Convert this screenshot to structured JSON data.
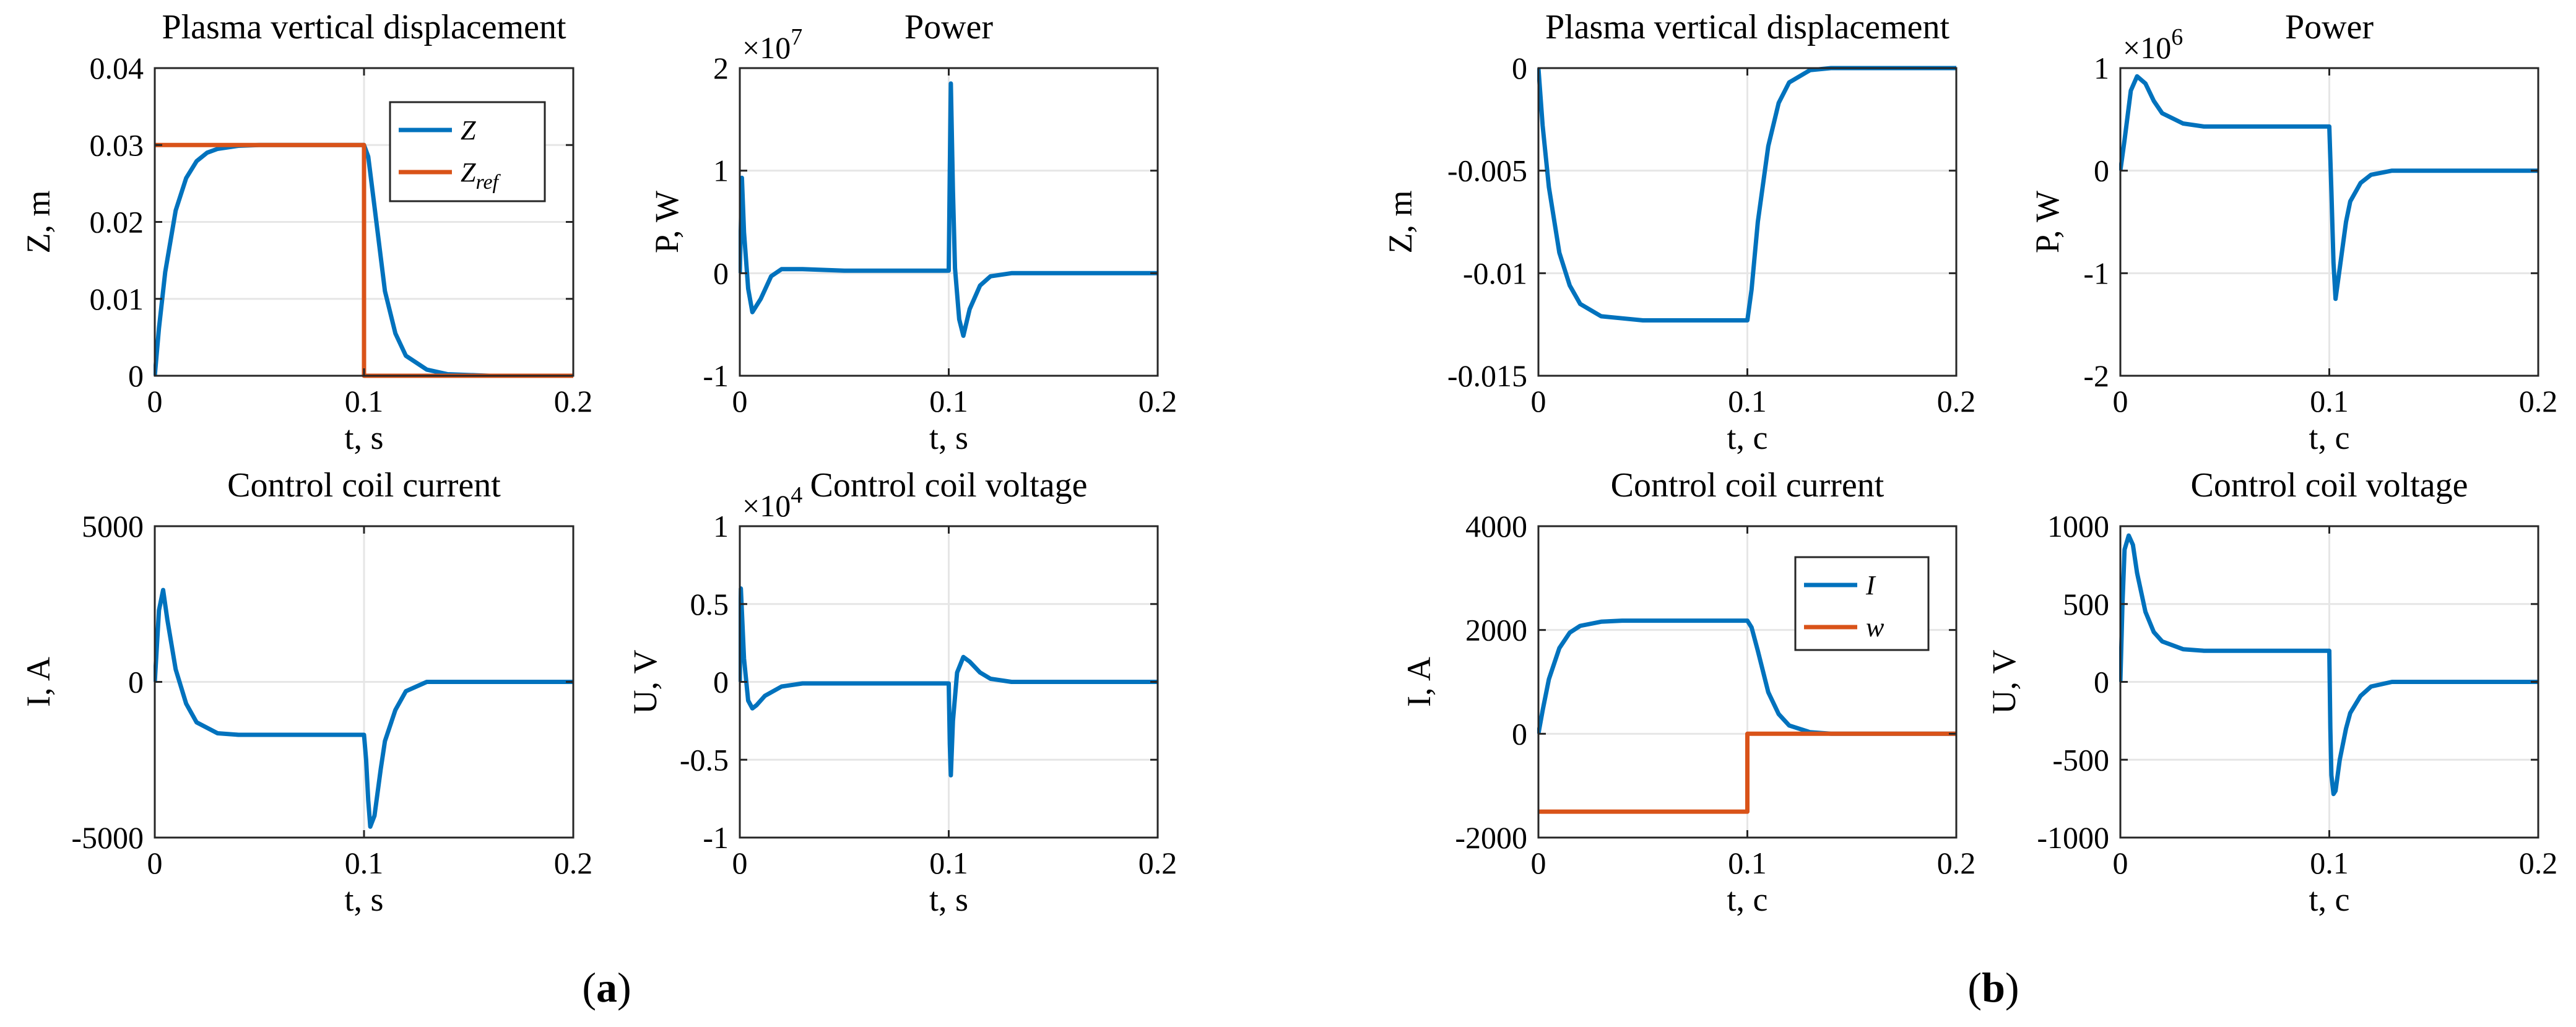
{
  "figure": {
    "captions": [
      "(a)",
      "(b)"
    ],
    "caption_letters": [
      "a",
      "b"
    ]
  },
  "colors": {
    "blue": "#0072BD",
    "orange": "#D95319",
    "grid": "#e6e6e6"
  },
  "chart_data": [
    {
      "id": "a1",
      "type": "line",
      "title": "Plasma vertical displacement",
      "xlabel": "t, s",
      "ylabel": "Z, m",
      "xlim": [
        0,
        0.2
      ],
      "ylim": [
        0,
        0.04
      ],
      "xticks": [
        0,
        0.1,
        0.2
      ],
      "xtick_labels": [
        "0",
        "0.1",
        "0.2"
      ],
      "yticks": [
        0,
        0.01,
        0.02,
        0.03,
        0.04
      ],
      "ytick_labels": [
        "0",
        "0.01",
        "0.02",
        "0.03",
        "0.04"
      ],
      "exponent": "",
      "legend": {
        "placement": "top-right",
        "entries": [
          "Z",
          "Z_ref"
        ],
        "labels": [
          "Z",
          "Z",
          "ref"
        ]
      },
      "series": [
        {
          "name": "Z",
          "color": "#0072BD",
          "x": [
            0,
            0.002,
            0.005,
            0.01,
            0.015,
            0.02,
            0.025,
            0.03,
            0.04,
            0.05,
            0.07,
            0.1,
            0.102,
            0.105,
            0.11,
            0.115,
            0.12,
            0.13,
            0.14,
            0.16,
            0.2
          ],
          "y": [
            0,
            0.0062,
            0.0135,
            0.0215,
            0.0257,
            0.0279,
            0.029,
            0.0295,
            0.0299,
            0.03,
            0.03,
            0.03,
            0.0285,
            0.022,
            0.011,
            0.0055,
            0.0026,
            0.0008,
            0.0002,
            0,
            0
          ]
        },
        {
          "name": "Z_ref",
          "color": "#D95319",
          "x": [
            0,
            0.1,
            0.1,
            0.2
          ],
          "y": [
            0.03,
            0.03,
            0,
            0
          ]
        }
      ]
    },
    {
      "id": "a2",
      "type": "line",
      "title": "Power",
      "xlabel": "t, s",
      "ylabel": "P, W",
      "xlim": [
        0,
        0.2
      ],
      "ylim": [
        -10000000.0,
        20000000.0
      ],
      "xticks": [
        0,
        0.1,
        0.2
      ],
      "xtick_labels": [
        "0",
        "0.1",
        "0.2"
      ],
      "yticks": [
        -10000000.0,
        0,
        10000000.0,
        20000000.0
      ],
      "ytick_labels": [
        "-1",
        "0",
        "1",
        "2"
      ],
      "exponent": "7",
      "series": [
        {
          "name": "P",
          "color": "#0072BD",
          "x": [
            0,
            0.001,
            0.002,
            0.004,
            0.006,
            0.01,
            0.015,
            0.02,
            0.03,
            0.05,
            0.1,
            0.1005,
            0.101,
            0.102,
            0.103,
            0.105,
            0.107,
            0.11,
            0.115,
            0.12,
            0.13,
            0.15,
            0.2
          ],
          "y": [
            0,
            9300000.0,
            4000000.0,
            -1500000.0,
            -3800000.0,
            -2500000.0,
            -300000.0,
            400000.0,
            400000.0,
            250000.0,
            250000.0,
            10000000.0,
            18500000.0,
            8000000.0,
            500000.0,
            -4500000.0,
            -6100000.0,
            -3500000.0,
            -1200000.0,
            -300000.0,
            0,
            0,
            0
          ]
        }
      ]
    },
    {
      "id": "a3",
      "type": "line",
      "title": "Control coil current",
      "xlabel": "t, s",
      "ylabel": "I, A",
      "xlim": [
        0,
        0.2
      ],
      "ylim": [
        -5000,
        5000
      ],
      "xticks": [
        0,
        0.1,
        0.2
      ],
      "xtick_labels": [
        "0",
        "0.1",
        "0.2"
      ],
      "yticks": [
        -5000,
        0,
        5000
      ],
      "ytick_labels": [
        "-5000",
        "0",
        "5000"
      ],
      "exponent": "",
      "series": [
        {
          "name": "I",
          "color": "#0072BD",
          "x": [
            0,
            0.002,
            0.004,
            0.006,
            0.01,
            0.015,
            0.02,
            0.03,
            0.04,
            0.06,
            0.1,
            0.101,
            0.102,
            0.103,
            0.105,
            0.108,
            0.11,
            0.115,
            0.12,
            0.13,
            0.15,
            0.2
          ],
          "y": [
            0,
            2300,
            2950,
            2000,
            400,
            -700,
            -1300,
            -1650,
            -1700,
            -1700,
            -1700,
            -2500,
            -3800,
            -4650,
            -4300,
            -2800,
            -1900,
            -900,
            -300,
            0,
            0,
            0
          ]
        }
      ]
    },
    {
      "id": "a4",
      "type": "line",
      "title": "Control coil voltage",
      "xlabel": "t, s",
      "ylabel": "U, V",
      "xlim": [
        0,
        0.2
      ],
      "ylim": [
        -10000.0,
        10000.0
      ],
      "xticks": [
        0,
        0.1,
        0.2
      ],
      "xtick_labels": [
        "0",
        "0.1",
        "0.2"
      ],
      "yticks": [
        -10000.0,
        -5000.0,
        0,
        5000.0,
        10000.0
      ],
      "ytick_labels": [
        "-1",
        "-0.5",
        "0",
        "0.5",
        "1"
      ],
      "exponent": "4",
      "series": [
        {
          "name": "U",
          "color": "#0072BD",
          "x": [
            0,
            0.0005,
            0.001,
            0.002,
            0.004,
            0.006,
            0.008,
            0.012,
            0.02,
            0.03,
            0.06,
            0.1,
            0.1005,
            0.101,
            0.102,
            0.104,
            0.107,
            0.11,
            0.115,
            0.12,
            0.13,
            0.15,
            0.2
          ],
          "y": [
            0,
            6000,
            4500,
            1500,
            -1200,
            -1700,
            -1500,
            -900,
            -300,
            -100,
            -100,
            -100,
            -4000,
            -6000,
            -2500,
            600,
            1600,
            1300,
            600,
            200,
            0,
            0,
            0
          ]
        }
      ]
    },
    {
      "id": "b1",
      "type": "line",
      "title": "Plasma vertical displacement",
      "xlabel": "t, c",
      "ylabel": "Z, m",
      "xlim": [
        0,
        0.2
      ],
      "ylim": [
        -0.015,
        0
      ],
      "xticks": [
        0,
        0.1,
        0.2
      ],
      "xtick_labels": [
        "0",
        "0.1",
        "0.2"
      ],
      "yticks": [
        -0.015,
        -0.01,
        -0.005,
        0
      ],
      "ytick_labels": [
        "-0.015",
        "-0.01",
        "-0.005",
        "0"
      ],
      "exponent": "",
      "series": [
        {
          "name": "Z",
          "color": "#0072BD",
          "x": [
            0,
            0.002,
            0.005,
            0.01,
            0.015,
            0.02,
            0.03,
            0.04,
            0.05,
            0.07,
            0.1,
            0.102,
            0.105,
            0.11,
            0.115,
            0.12,
            0.13,
            0.14,
            0.16,
            0.2
          ],
          "y": [
            0,
            -0.0028,
            -0.0058,
            -0.009,
            -0.0106,
            -0.0115,
            -0.0121,
            -0.0122,
            -0.0123,
            -0.0123,
            -0.0123,
            -0.0108,
            -0.0075,
            -0.0038,
            -0.0017,
            -0.0007,
            -0.0001,
            0,
            0,
            0
          ]
        }
      ]
    },
    {
      "id": "b2",
      "type": "line",
      "title": "Power",
      "xlabel": "t, c",
      "ylabel": "P, W",
      "xlim": [
        0,
        0.2
      ],
      "ylim": [
        -2000000.0,
        1000000.0
      ],
      "xticks": [
        0,
        0.1,
        0.2
      ],
      "xtick_labels": [
        "0",
        "0.1",
        "0.2"
      ],
      "yticks": [
        -2000000.0,
        -1000000.0,
        0,
        1000000.0
      ],
      "ytick_labels": [
        "-2",
        "-1",
        "0",
        "1"
      ],
      "exponent": "6",
      "series": [
        {
          "name": "P",
          "color": "#0072BD",
          "x": [
            0,
            0.002,
            0.005,
            0.008,
            0.012,
            0.016,
            0.02,
            0.03,
            0.04,
            0.06,
            0.1,
            0.101,
            0.102,
            0.103,
            0.105,
            0.108,
            0.11,
            0.115,
            0.12,
            0.13,
            0.15,
            0.2
          ],
          "y": [
            0,
            300000,
            780000,
            920000,
            850000,
            680000,
            560000,
            460000,
            430000,
            430000,
            430000,
            -200000,
            -900000,
            -1250000,
            -950000,
            -500000,
            -300000,
            -120000,
            -40000,
            0,
            0,
            0
          ]
        }
      ]
    },
    {
      "id": "b3",
      "type": "line",
      "title": "Control coil current",
      "xlabel": "t, c",
      "ylabel": "I, A",
      "xlim": [
        0,
        0.2
      ],
      "ylim": [
        -2000,
        4000
      ],
      "xticks": [
        0,
        0.1,
        0.2
      ],
      "xtick_labels": [
        "0",
        "0.1",
        "0.2"
      ],
      "yticks": [
        -2000,
        0,
        2000,
        4000
      ],
      "ytick_labels": [
        "-2000",
        "0",
        "2000",
        "4000"
      ],
      "exponent": "",
      "legend": {
        "placement": "top-right",
        "entries": [
          "I",
          "w"
        ],
        "labels": [
          "I",
          "w"
        ]
      },
      "series": [
        {
          "name": "I",
          "color": "#0072BD",
          "x": [
            0,
            0.002,
            0.005,
            0.01,
            0.015,
            0.02,
            0.03,
            0.04,
            0.06,
            0.1,
            0.102,
            0.105,
            0.11,
            0.115,
            0.12,
            0.13,
            0.14,
            0.16,
            0.2
          ],
          "y": [
            0,
            450,
            1050,
            1650,
            1950,
            2080,
            2160,
            2180,
            2180,
            2180,
            2050,
            1600,
            800,
            380,
            160,
            30,
            0,
            0,
            0
          ]
        },
        {
          "name": "w",
          "color": "#D95319",
          "x": [
            0,
            0.1,
            0.1,
            0.2
          ],
          "y": [
            -1500,
            -1500,
            0,
            0
          ]
        }
      ]
    },
    {
      "id": "b4",
      "type": "line",
      "title": "Control coil voltage",
      "xlabel": "t, c",
      "ylabel": "U, V",
      "xlim": [
        0,
        0.2
      ],
      "ylim": [
        -1000,
        1000
      ],
      "xticks": [
        0,
        0.1,
        0.2
      ],
      "xtick_labels": [
        "0",
        "0.1",
        "0.2"
      ],
      "yticks": [
        -1000,
        -500,
        0,
        500,
        1000
      ],
      "ytick_labels": [
        "-1000",
        "-500",
        "0",
        "500",
        "1000"
      ],
      "exponent": "",
      "series": [
        {
          "name": "U",
          "color": "#0072BD",
          "x": [
            0,
            0.001,
            0.002,
            0.004,
            0.006,
            0.008,
            0.012,
            0.016,
            0.02,
            0.03,
            0.04,
            0.06,
            0.1,
            0.1005,
            0.101,
            0.102,
            0.103,
            0.105,
            0.108,
            0.11,
            0.115,
            0.12,
            0.13,
            0.15,
            0.2
          ],
          "y": [
            0,
            500,
            850,
            940,
            880,
            700,
            450,
            320,
            260,
            210,
            200,
            200,
            200,
            -300,
            -600,
            -720,
            -700,
            -500,
            -300,
            -200,
            -90,
            -30,
            0,
            0,
            0
          ]
        }
      ]
    }
  ]
}
